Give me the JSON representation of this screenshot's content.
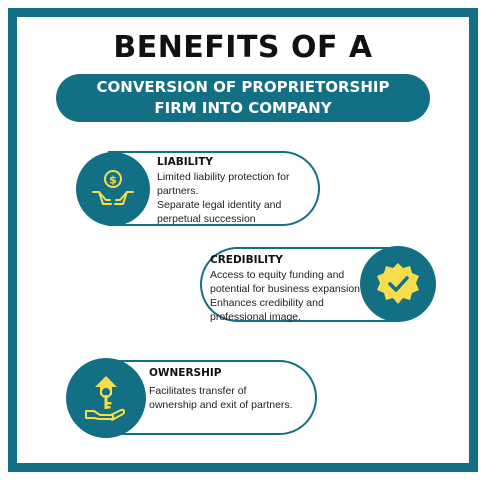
{
  "header": {
    "title": "BENEFITS OF A",
    "subtitle_line1": "CONVERSION OF PROPRIETORSHIP",
    "subtitle_line2": "FIRM INTO COMPANY"
  },
  "colors": {
    "primary": "#136f84",
    "accent": "#f5dd4b"
  },
  "benefits": [
    {
      "title": "LIABILITY",
      "icon": "hands-money-icon",
      "lines": [
        "Limited liability protection for",
        "partners.",
        "Separate legal identity and",
        "perpetual succession"
      ]
    },
    {
      "title": "CREDIBILITY",
      "icon": "verified-badge-icon",
      "lines": [
        "Access to equity funding and",
        "potential for business expansion",
        "Enhances credibility and",
        "professional image."
      ]
    },
    {
      "title": "OWNERSHIP",
      "icon": "hand-key-house-icon",
      "lines": [
        "Facilitates transfer of",
        "ownership and exit of partners."
      ]
    }
  ]
}
